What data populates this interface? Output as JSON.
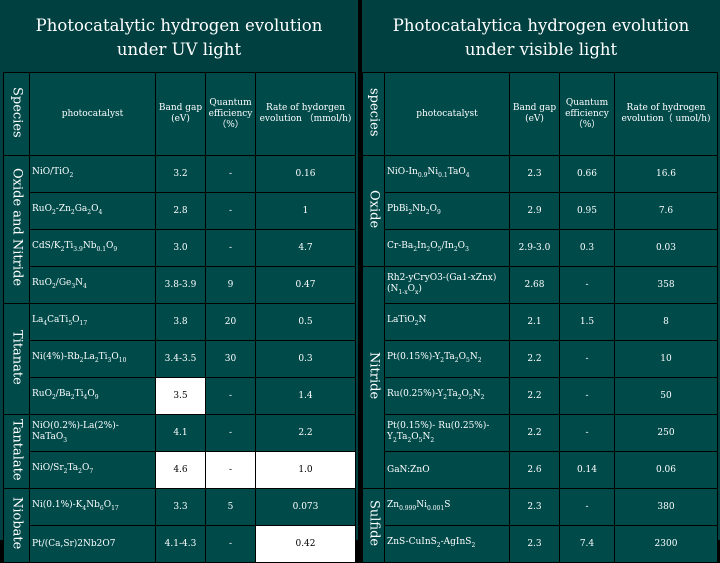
{
  "left": {
    "title": "Photocatalytic hydrogen evolution\nunder UV light",
    "headers": {
      "species": "Species",
      "photocatalyst": "photocatalyst",
      "band_gap": "Band gap (eV)",
      "quantum_efficiency": "Quantum efficiency （%）",
      "rate": "Rate of hydorgen evolution （mmol/h)"
    },
    "groups": {
      "oxide_nitride": "Oxide and Nitride",
      "titanate": "Titanate",
      "tantalate": "Tantalate",
      "niobate": "Niobate"
    },
    "rows": [
      {
        "catalyst": "NiO/TiO2",
        "band_gap": "3.2",
        "qe": "-",
        "rate": "0.16"
      },
      {
        "catalyst": "RuO2-Zn2Ga2O4",
        "band_gap": "2.8",
        "qe": "-",
        "rate": "1"
      },
      {
        "catalyst": "CdS/K2Ti3.9Nb0.1O9",
        "band_gap": "3.0",
        "qe": "-",
        "rate": "4.7"
      },
      {
        "catalyst": "RuO2/Ge3N4",
        "band_gap": "3.8-3.9",
        "qe": "9",
        "rate": "0.47"
      },
      {
        "catalyst": "La4CaTi5O17",
        "band_gap": "3.8",
        "qe": "20",
        "rate": "0.5"
      },
      {
        "catalyst": "Ni(4%)-Rb2La2Ti3O10",
        "band_gap": "3.4-3.5",
        "qe": "30",
        "rate": "0.3"
      },
      {
        "catalyst": "RuO2/Ba2Ti4O9",
        "band_gap": "3.5",
        "qe": "-",
        "rate": "1.4"
      },
      {
        "catalyst": "NiO(0.2%)-La(2%)-NaTaO3",
        "band_gap": "4.1",
        "qe": "-",
        "rate": "2.2"
      },
      {
        "catalyst": "NiO/Sr2Ta2O7",
        "band_gap": "4.6",
        "qe": "-",
        "rate": "1.0"
      },
      {
        "catalyst": "Ni(0.1%)-K4Nb6O17",
        "band_gap": "3.3",
        "qe": "5",
        "rate": "0.073"
      },
      {
        "catalyst": "Pt/(Ca,Sr)2Nb2O7",
        "band_gap": "4.1-4.3",
        "qe": "-",
        "rate": "0.42"
      }
    ]
  },
  "right": {
    "title": "Photocatalytica hydrogen evolution\nunder visible light",
    "headers": {
      "species": "species",
      "photocatalyst": "photocatalyst",
      "band_gap": "Band gap (eV)",
      "quantum_efficiency": "Quantum efficiency （%）",
      "rate": "Rate of hydrogen evolution（ umol/h)"
    },
    "groups": {
      "oxide": "Oxide",
      "nitride": "Nitride",
      "sulfide": "Sulfide"
    },
    "rows": [
      {
        "catalyst": "NiO-In0.9Ni0.1TaO4",
        "band_gap": "2.3",
        "qe": "0.66",
        "rate": "16.6"
      },
      {
        "catalyst": "PbBi2Nb2O9",
        "band_gap": "2.9",
        "qe": "0.95",
        "rate": "7.6"
      },
      {
        "catalyst": "Cr-Ba2In2O5/In2O3",
        "band_gap": "2.9-3.0",
        "qe": "0.3",
        "rate": "0.03"
      },
      {
        "catalyst": "Rh2-yCryO3-(Ga1-xZnx)(N1-xOx)",
        "band_gap": "2.68",
        "qe": "-",
        "rate": "358"
      },
      {
        "catalyst": "LaTiO2N",
        "band_gap": "2.1",
        "qe": "1.5",
        "rate": "8"
      },
      {
        "catalyst": "Pt(0.15%)-Y2Ta2O5N2",
        "band_gap": "2.2",
        "qe": "-",
        "rate": "10"
      },
      {
        "catalyst": "Ru(0.25%)-Y2Ta2O5N2",
        "band_gap": "2.2",
        "qe": "-",
        "rate": "50"
      },
      {
        "catalyst": "Pt(0.15%)- Ru(0.25%)-Y2Ta2O5N2",
        "band_gap": "2.2",
        "qe": "-",
        "rate": "250"
      },
      {
        "catalyst": "GaN:ZnO",
        "band_gap": "2.6",
        "qe": "0.14",
        "rate": "0.06"
      },
      {
        "catalyst": "Zn0.999Ni0.001S",
        "band_gap": "2.3",
        "qe": "-",
        "rate": "380"
      },
      {
        "catalyst": "ZnS-CuInS2-AgInS2",
        "band_gap": "2.3",
        "qe": "7.4",
        "rate": "2300"
      }
    ]
  }
}
